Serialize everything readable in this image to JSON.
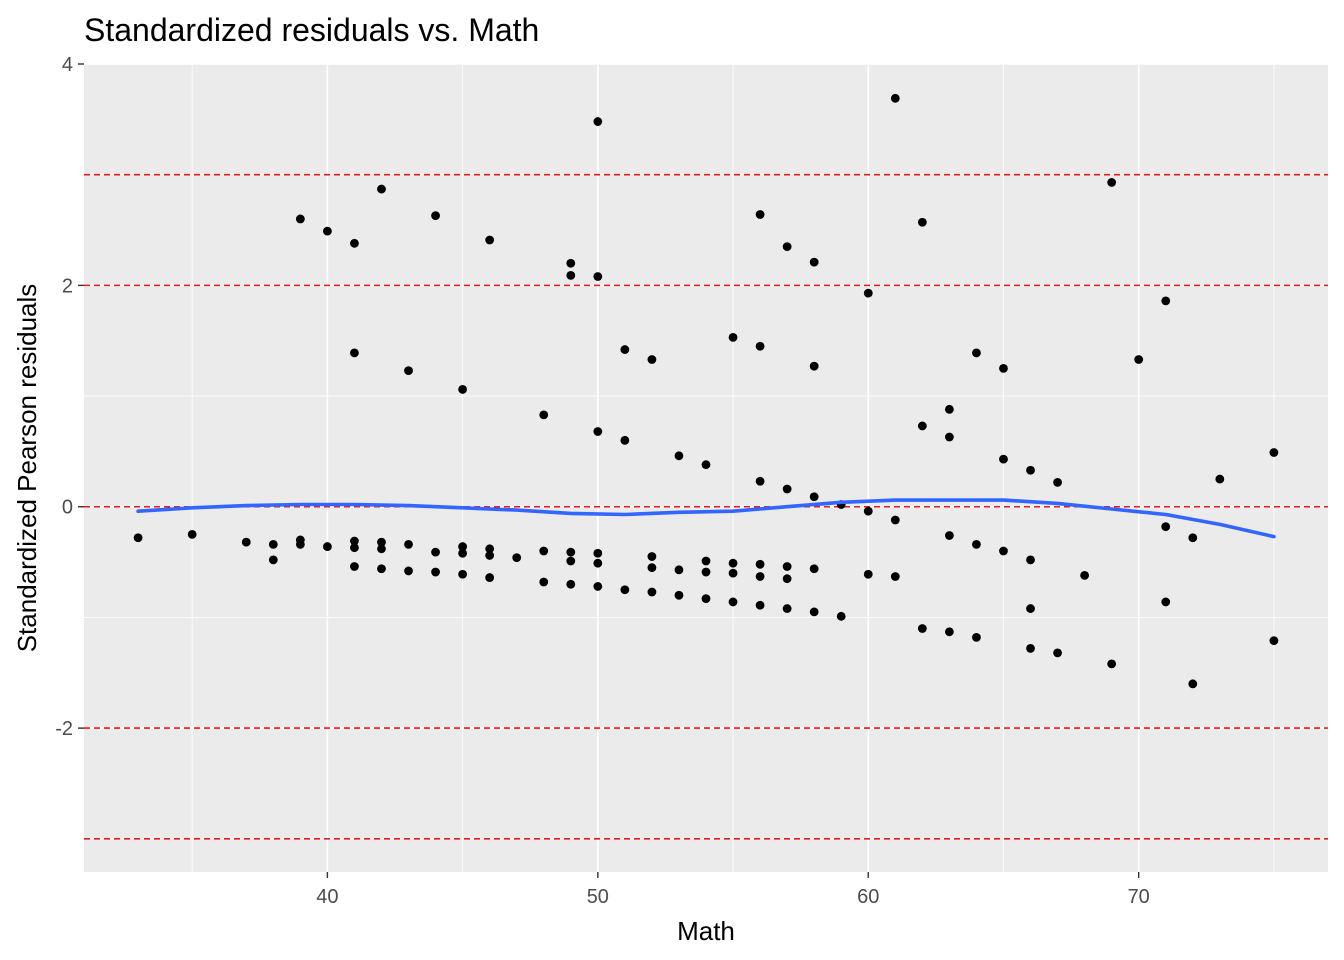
{
  "chart_data": {
    "type": "scatter",
    "title": "Standardized residuals vs. Math",
    "xlabel": "Math",
    "ylabel": "Standardized Pearson residuals",
    "xlim": [
      31.0,
      77.0
    ],
    "ylim": [
      -3.3,
      4.0
    ],
    "x_ticks": [
      40,
      50,
      60,
      70
    ],
    "y_ticks": [
      -2,
      0,
      2,
      4
    ],
    "reference_lines_y": [
      -3,
      -2,
      0,
      2,
      3
    ],
    "grid": true,
    "colors": {
      "panel": "#ebebeb",
      "grid": "#ffffff",
      "points": "#000000",
      "smooth": "#3366ff",
      "reference": "#e41a1c"
    },
    "points": [
      [
        33,
        -0.28
      ],
      [
        35,
        -0.25
      ],
      [
        37,
        -0.32
      ],
      [
        38,
        -0.34
      ],
      [
        38,
        -0.48
      ],
      [
        39,
        2.6
      ],
      [
        39,
        -0.3
      ],
      [
        39,
        -0.34
      ],
      [
        40,
        2.49
      ],
      [
        40,
        -0.36
      ],
      [
        41,
        2.38
      ],
      [
        41,
        1.39
      ],
      [
        41,
        -0.31
      ],
      [
        41,
        -0.37
      ],
      [
        41,
        -0.54
      ],
      [
        42,
        2.87
      ],
      [
        42,
        -0.32
      ],
      [
        42,
        -0.38
      ],
      [
        42,
        -0.56
      ],
      [
        43,
        1.23
      ],
      [
        43,
        -0.34
      ],
      [
        43,
        -0.58
      ],
      [
        44,
        2.63
      ],
      [
        44,
        -0.41
      ],
      [
        44,
        -0.59
      ],
      [
        45,
        1.06
      ],
      [
        45,
        -0.36
      ],
      [
        45,
        -0.42
      ],
      [
        45,
        -0.61
      ],
      [
        46,
        2.41
      ],
      [
        46,
        -0.38
      ],
      [
        46,
        -0.44
      ],
      [
        46,
        -0.64
      ],
      [
        47,
        -0.46
      ],
      [
        48,
        0.83
      ],
      [
        48,
        -0.4
      ],
      [
        48,
        -0.68
      ],
      [
        49,
        2.2
      ],
      [
        49,
        2.09
      ],
      [
        49,
        -0.41
      ],
      [
        49,
        -0.49
      ],
      [
        49,
        -0.7
      ],
      [
        50,
        3.48
      ],
      [
        50,
        2.08
      ],
      [
        50,
        0.68
      ],
      [
        50,
        -0.42
      ],
      [
        50,
        -0.51
      ],
      [
        50,
        -0.72
      ],
      [
        51,
        1.42
      ],
      [
        51,
        0.6
      ],
      [
        51,
        -0.75
      ],
      [
        52,
        1.33
      ],
      [
        52,
        -0.45
      ],
      [
        52,
        -0.55
      ],
      [
        52,
        -0.77
      ],
      [
        53,
        0.46
      ],
      [
        53,
        -0.57
      ],
      [
        53,
        -0.8
      ],
      [
        54,
        0.38
      ],
      [
        54,
        -0.49
      ],
      [
        54,
        -0.59
      ],
      [
        54,
        -0.83
      ],
      [
        55,
        1.53
      ],
      [
        55,
        -0.51
      ],
      [
        55,
        -0.6
      ],
      [
        55,
        -0.86
      ],
      [
        56,
        2.64
      ],
      [
        56,
        1.45
      ],
      [
        56,
        0.23
      ],
      [
        56,
        -0.52
      ],
      [
        56,
        -0.63
      ],
      [
        56,
        -0.89
      ],
      [
        57,
        2.35
      ],
      [
        57,
        0.16
      ],
      [
        57,
        -0.54
      ],
      [
        57,
        -0.65
      ],
      [
        57,
        -0.92
      ],
      [
        58,
        2.21
      ],
      [
        58,
        1.27
      ],
      [
        58,
        0.09
      ],
      [
        58,
        -0.56
      ],
      [
        58,
        -0.95
      ],
      [
        59,
        0.02
      ],
      [
        59,
        -0.99
      ],
      [
        60,
        1.93
      ],
      [
        60,
        -0.04
      ],
      [
        60,
        -0.61
      ],
      [
        61,
        3.69
      ],
      [
        61,
        -0.12
      ],
      [
        61,
        -0.63
      ],
      [
        62,
        2.57
      ],
      [
        62,
        0.73
      ],
      [
        62,
        -1.1
      ],
      [
        63,
        0.88
      ],
      [
        63,
        0.63
      ],
      [
        63,
        -0.26
      ],
      [
        63,
        -1.13
      ],
      [
        64,
        1.39
      ],
      [
        64,
        -0.34
      ],
      [
        64,
        -1.18
      ],
      [
        65,
        1.25
      ],
      [
        65,
        0.43
      ],
      [
        65,
        -0.4
      ],
      [
        66,
        0.33
      ],
      [
        66,
        -0.48
      ],
      [
        66,
        -0.92
      ],
      [
        66,
        -1.28
      ],
      [
        67,
        0.22
      ],
      [
        67,
        -1.32
      ],
      [
        68,
        -0.62
      ],
      [
        69,
        2.93
      ],
      [
        69,
        -1.42
      ],
      [
        70,
        1.33
      ],
      [
        71,
        1.86
      ],
      [
        71,
        -0.18
      ],
      [
        71,
        -0.86
      ],
      [
        72,
        -0.28
      ],
      [
        72,
        -1.6
      ],
      [
        73,
        0.25
      ],
      [
        75,
        0.49
      ],
      [
        75,
        -1.21
      ]
    ],
    "smooth_line": [
      [
        33,
        -0.04
      ],
      [
        35,
        -0.01
      ],
      [
        37,
        0.01
      ],
      [
        39,
        0.02
      ],
      [
        41,
        0.02
      ],
      [
        43,
        0.01
      ],
      [
        45,
        -0.01
      ],
      [
        47,
        -0.03
      ],
      [
        49,
        -0.06
      ],
      [
        51,
        -0.07
      ],
      [
        53,
        -0.05
      ],
      [
        55,
        -0.04
      ],
      [
        57,
        0.0
      ],
      [
        59,
        0.04
      ],
      [
        61,
        0.06
      ],
      [
        63,
        0.06
      ],
      [
        65,
        0.06
      ],
      [
        67,
        0.03
      ],
      [
        69,
        -0.02
      ],
      [
        71,
        -0.07
      ],
      [
        73,
        -0.16
      ],
      [
        75,
        -0.27
      ]
    ]
  }
}
